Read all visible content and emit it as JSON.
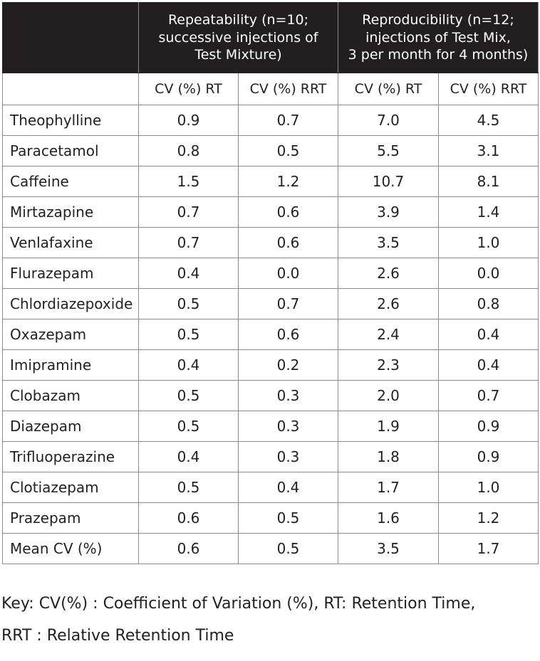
{
  "header": {
    "repeatability": {
      "line1": "Repeatability (n=10;",
      "line2": "successive injections of",
      "line3": "Test Mixture)"
    },
    "reproducibility": {
      "line1": "Reproducibility (n=12;",
      "line2": "injections of Test Mix,",
      "line3": "3 per month for 4 months)"
    },
    "subheaders": [
      "CV (%) RT",
      "CV (%) RRT",
      "CV (%) RT",
      "CV (%) RRT"
    ]
  },
  "rows": [
    {
      "name": "Theophylline",
      "values": [
        "0.9",
        "0.7",
        "7.0",
        "4.5"
      ]
    },
    {
      "name": "Paracetamol",
      "values": [
        "0.8",
        "0.5",
        "5.5",
        "3.1"
      ]
    },
    {
      "name": "Caffeine",
      "values": [
        "1.5",
        "1.2",
        "10.7",
        "8.1"
      ]
    },
    {
      "name": "Mirtazapine",
      "values": [
        "0.7",
        "0.6",
        "3.9",
        "1.4"
      ]
    },
    {
      "name": "Venlafaxine",
      "values": [
        "0.7",
        "0.6",
        "3.5",
        "1.0"
      ]
    },
    {
      "name": "Flurazepam",
      "values": [
        "0.4",
        "0.0",
        "2.6",
        "0.0"
      ]
    },
    {
      "name": "Chlordiazepoxide",
      "values": [
        "0.5",
        "0.7",
        "2.6",
        "0.8"
      ]
    },
    {
      "name": "Oxazepam",
      "values": [
        "0.5",
        "0.6",
        "2.4",
        "0.4"
      ]
    },
    {
      "name": "Imipramine",
      "values": [
        "0.4",
        "0.2",
        "2.3",
        "0.4"
      ]
    },
    {
      "name": "Clobazam",
      "values": [
        "0.5",
        "0.3",
        "2.0",
        "0.7"
      ]
    },
    {
      "name": "Diazepam",
      "values": [
        "0.5",
        "0.3",
        "1.9",
        "0.9"
      ]
    },
    {
      "name": "Trifluoperazine",
      "values": [
        "0.4",
        "0.3",
        "1.8",
        "0.9"
      ]
    },
    {
      "name": "Clotiazepam",
      "values": [
        "0.5",
        "0.4",
        "1.7",
        "1.0"
      ]
    },
    {
      "name": "Prazepam",
      "values": [
        "0.6",
        "0.5",
        "1.6",
        "1.2"
      ]
    },
    {
      "name": "Mean CV (%)",
      "values": [
        "0.6",
        "0.5",
        "3.5",
        "1.7"
      ]
    }
  ],
  "key": {
    "line1": "Key: CV(%) : Coefficient of Variation (%), RT: Retention Time,",
    "line2": "RRT : Relative Retention Time"
  },
  "colors": {
    "header_bg": "#231f20",
    "header_text": "#ffffff",
    "grid": "#8a8a8a"
  }
}
